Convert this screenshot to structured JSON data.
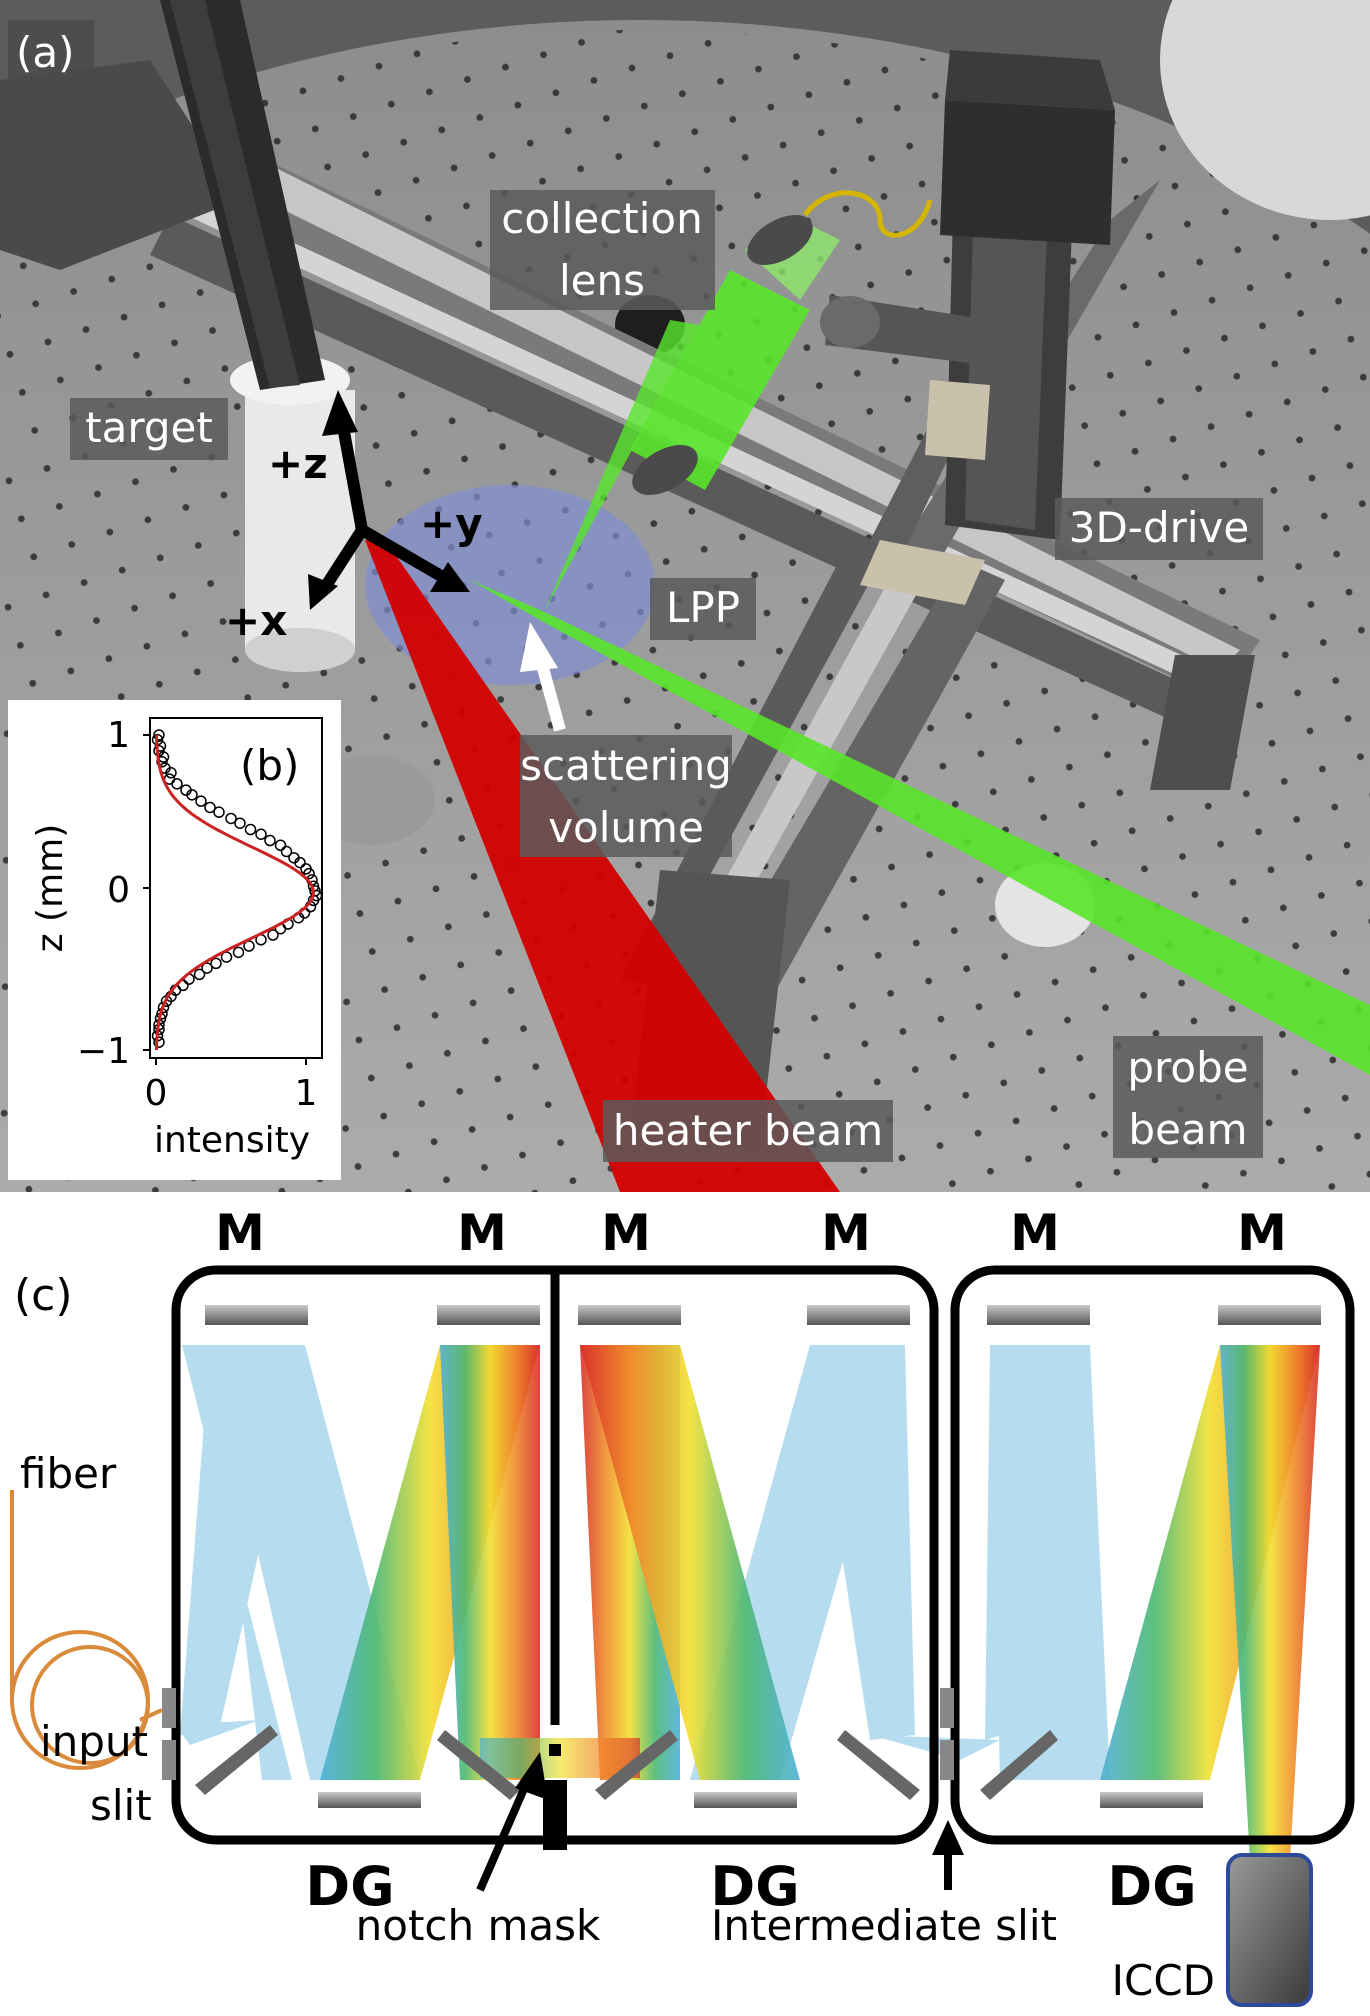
{
  "panel_a": {
    "panel_label": "(a)",
    "labels": {
      "collection_lens_line1": "collection",
      "collection_lens_line2": "lens",
      "target": "target",
      "drive": "3D-drive",
      "lpp": "LPP",
      "scattering_line1": "scattering",
      "scattering_line2": "volume",
      "heater_beam": "heater beam",
      "probe_line1": "probe",
      "probe_line2": "beam"
    },
    "axes": {
      "z": "+z",
      "y": "+y",
      "x": "+x"
    },
    "colors": {
      "probe_beam": "#58e62a",
      "heater_beam": "#d40000",
      "plasma": "#7f8fd0",
      "table": "#a8a8a8"
    }
  },
  "panel_b": {
    "panel_label": "(b)",
    "ylabel": "z (mm)",
    "xlabel": "intensity",
    "yticks": [
      "1",
      "0",
      "−1"
    ],
    "xticks": [
      "0",
      "1"
    ],
    "chart_data": {
      "type": "scatter",
      "x_label": "intensity",
      "y_label": "z (mm)",
      "xlim": [
        0,
        1.1
      ],
      "ylim": [
        -1.0,
        1.0
      ],
      "fit_color": "#cc2222",
      "points": [
        [
          0.02,
          1.0
        ],
        [
          0.01,
          0.97
        ],
        [
          0.03,
          0.93
        ],
        [
          0.02,
          0.9
        ],
        [
          0.05,
          0.86
        ],
        [
          0.04,
          0.83
        ],
        [
          0.06,
          0.79
        ],
        [
          0.1,
          0.76
        ],
        [
          0.09,
          0.72
        ],
        [
          0.14,
          0.69
        ],
        [
          0.2,
          0.65
        ],
        [
          0.24,
          0.62
        ],
        [
          0.3,
          0.58
        ],
        [
          0.36,
          0.54
        ],
        [
          0.42,
          0.51
        ],
        [
          0.5,
          0.47
        ],
        [
          0.56,
          0.44
        ],
        [
          0.63,
          0.4
        ],
        [
          0.7,
          0.37
        ],
        [
          0.76,
          0.33
        ],
        [
          0.83,
          0.3
        ],
        [
          0.87,
          0.26
        ],
        [
          0.92,
          0.22
        ],
        [
          0.96,
          0.19
        ],
        [
          1.0,
          0.15
        ],
        [
          1.02,
          0.12
        ],
        [
          1.04,
          0.08
        ],
        [
          1.05,
          0.04
        ],
        [
          1.06,
          0.01
        ],
        [
          1.07,
          -0.02
        ],
        [
          1.05,
          -0.05
        ],
        [
          1.03,
          -0.09
        ],
        [
          0.99,
          -0.13
        ],
        [
          0.95,
          -0.16
        ],
        [
          0.88,
          -0.2
        ],
        [
          0.83,
          -0.23
        ],
        [
          0.78,
          -0.27
        ],
        [
          0.7,
          -0.3
        ],
        [
          0.62,
          -0.34
        ],
        [
          0.55,
          -0.38
        ],
        [
          0.47,
          -0.41
        ],
        [
          0.4,
          -0.45
        ],
        [
          0.34,
          -0.48
        ],
        [
          0.29,
          -0.52
        ],
        [
          0.22,
          -0.55
        ],
        [
          0.18,
          -0.59
        ],
        [
          0.13,
          -0.62
        ],
        [
          0.1,
          -0.66
        ],
        [
          0.07,
          -0.69
        ],
        [
          0.05,
          -0.73
        ],
        [
          0.04,
          -0.77
        ],
        [
          0.03,
          -0.8
        ],
        [
          0.02,
          -0.84
        ],
        [
          0.02,
          -0.87
        ],
        [
          0.01,
          -0.91
        ],
        [
          0.02,
          -0.95
        ]
      ]
    }
  },
  "panel_c": {
    "panel_label": "(c)",
    "mirror_label": "M",
    "grating_label": "DG",
    "fiber": "fiber",
    "input_slit_line1": "input",
    "input_slit_line2": "slit",
    "notch_mask": "notch mask",
    "intermediate_slit": "Intermediate slit",
    "iccd": "ICCD"
  }
}
